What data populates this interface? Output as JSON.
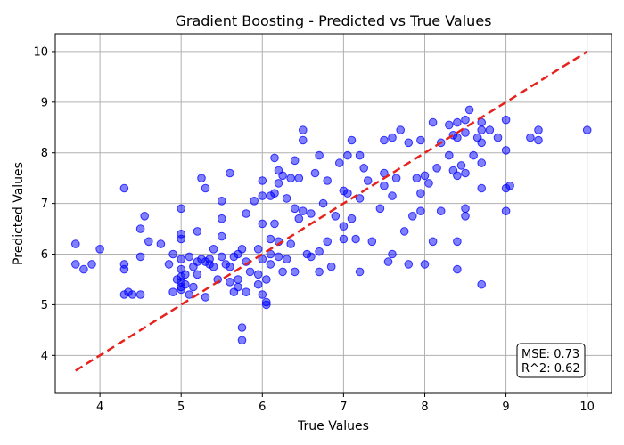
{
  "chart_data": {
    "type": "scatter",
    "title": "Gradient Boosting - Predicted vs True Values",
    "xlabel": "True Values",
    "ylabel": "Predicted Values",
    "xlim": [
      3.45,
      10.3
    ],
    "ylim": [
      3.25,
      10.35
    ],
    "xticks": [
      4,
      5,
      6,
      7,
      8,
      9,
      10
    ],
    "yticks": [
      4,
      5,
      6,
      7,
      8,
      9,
      10
    ],
    "grid": true,
    "colors": {
      "points": "#0000ff",
      "reference_line": "#e8211d",
      "grid": "#b0b0b0"
    },
    "reference_line": {
      "style": "dashed",
      "x": [
        3.7,
        10.0
      ],
      "y": [
        3.7,
        10.0
      ]
    },
    "annotation": {
      "lines": [
        "MSE: 0.73",
        "R^2: 0.62"
      ],
      "position": "bottom-right"
    },
    "series": [
      {
        "points": [
          [
            3.7,
            6.2
          ],
          [
            3.7,
            5.8
          ],
          [
            3.8,
            5.7
          ],
          [
            3.9,
            5.8
          ],
          [
            4.0,
            6.1
          ],
          [
            4.3,
            7.3
          ],
          [
            4.3,
            5.8
          ],
          [
            4.3,
            5.7
          ],
          [
            4.3,
            5.2
          ],
          [
            4.35,
            5.25
          ],
          [
            4.4,
            5.2
          ],
          [
            4.5,
            5.2
          ],
          [
            4.5,
            6.5
          ],
          [
            4.5,
            5.95
          ],
          [
            4.55,
            6.75
          ],
          [
            4.6,
            6.25
          ],
          [
            4.75,
            6.2
          ],
          [
            4.85,
            5.8
          ],
          [
            4.9,
            6.0
          ],
          [
            4.9,
            5.25
          ],
          [
            4.95,
            5.5
          ],
          [
            5.0,
            6.9
          ],
          [
            5.0,
            6.4
          ],
          [
            5.0,
            6.3
          ],
          [
            5.0,
            5.9
          ],
          [
            5.0,
            5.7
          ],
          [
            5.0,
            5.55
          ],
          [
            5.0,
            5.45
          ],
          [
            5.0,
            5.35
          ],
          [
            5.0,
            5.3
          ],
          [
            5.05,
            5.6
          ],
          [
            5.05,
            5.4
          ],
          [
            5.1,
            5.2
          ],
          [
            5.1,
            5.95
          ],
          [
            5.15,
            5.75
          ],
          [
            5.15,
            5.35
          ],
          [
            5.2,
            5.85
          ],
          [
            5.2,
            5.6
          ],
          [
            5.2,
            6.45
          ],
          [
            5.25,
            7.5
          ],
          [
            5.25,
            5.9
          ],
          [
            5.3,
            5.85
          ],
          [
            5.3,
            5.15
          ],
          [
            5.3,
            7.3
          ],
          [
            5.35,
            5.9
          ],
          [
            5.35,
            5.8
          ],
          [
            5.4,
            6.1
          ],
          [
            5.4,
            5.75
          ],
          [
            5.45,
            5.5
          ],
          [
            5.5,
            6.7
          ],
          [
            5.5,
            6.35
          ],
          [
            5.5,
            7.05
          ],
          [
            5.5,
            5.95
          ],
          [
            5.55,
            5.8
          ],
          [
            5.6,
            5.75
          ],
          [
            5.6,
            7.6
          ],
          [
            5.6,
            5.45
          ],
          [
            5.65,
            5.25
          ],
          [
            5.65,
            5.95
          ],
          [
            5.7,
            6.0
          ],
          [
            5.7,
            5.5
          ],
          [
            5.7,
            5.35
          ],
          [
            5.75,
            6.1
          ],
          [
            5.75,
            4.55
          ],
          [
            5.75,
            4.3
          ],
          [
            5.8,
            6.8
          ],
          [
            5.8,
            5.85
          ],
          [
            5.8,
            5.25
          ],
          [
            5.85,
            5.65
          ],
          [
            5.9,
            7.05
          ],
          [
            5.95,
            6.1
          ],
          [
            5.95,
            5.4
          ],
          [
            5.95,
            5.6
          ],
          [
            6.0,
            7.45
          ],
          [
            6.0,
            7.15
          ],
          [
            6.0,
            6.6
          ],
          [
            6.0,
            5.9
          ],
          [
            6.0,
            5.2
          ],
          [
            6.05,
            5.5
          ],
          [
            6.05,
            5.0
          ],
          [
            6.05,
            5.05
          ],
          [
            6.1,
            7.15
          ],
          [
            6.1,
            6.3
          ],
          [
            6.1,
            6.0
          ],
          [
            6.1,
            5.8
          ],
          [
            6.15,
            7.9
          ],
          [
            6.15,
            7.2
          ],
          [
            6.15,
            6.6
          ],
          [
            6.2,
            7.65
          ],
          [
            6.2,
            7.4
          ],
          [
            6.2,
            6.25
          ],
          [
            6.2,
            5.95
          ],
          [
            6.25,
            7.55
          ],
          [
            6.25,
            5.65
          ],
          [
            6.3,
            5.9
          ],
          [
            6.3,
            7.1
          ],
          [
            6.35,
            7.5
          ],
          [
            6.35,
            6.2
          ],
          [
            6.4,
            7.85
          ],
          [
            6.4,
            6.9
          ],
          [
            6.4,
            5.65
          ],
          [
            6.45,
            7.5
          ],
          [
            6.45,
            6.7
          ],
          [
            6.5,
            8.45
          ],
          [
            6.5,
            8.25
          ],
          [
            6.5,
            6.85
          ],
          [
            6.55,
            6.0
          ],
          [
            6.6,
            6.8
          ],
          [
            6.6,
            5.95
          ],
          [
            6.65,
            7.6
          ],
          [
            6.7,
            7.95
          ],
          [
            6.7,
            6.05
          ],
          [
            6.7,
            5.65
          ],
          [
            6.75,
            7.0
          ],
          [
            6.8,
            7.45
          ],
          [
            6.8,
            6.25
          ],
          [
            6.85,
            5.75
          ],
          [
            6.9,
            6.75
          ],
          [
            6.95,
            7.8
          ],
          [
            7.0,
            7.25
          ],
          [
            7.0,
            6.55
          ],
          [
            7.0,
            6.3
          ],
          [
            7.05,
            7.95
          ],
          [
            7.05,
            7.2
          ],
          [
            7.1,
            8.25
          ],
          [
            7.1,
            6.7
          ],
          [
            7.15,
            6.3
          ],
          [
            7.2,
            7.95
          ],
          [
            7.2,
            7.1
          ],
          [
            7.2,
            5.65
          ],
          [
            7.25,
            7.7
          ],
          [
            7.3,
            7.45
          ],
          [
            7.35,
            6.25
          ],
          [
            7.45,
            6.9
          ],
          [
            7.5,
            8.25
          ],
          [
            7.5,
            7.6
          ],
          [
            7.5,
            7.35
          ],
          [
            7.55,
            5.85
          ],
          [
            7.6,
            8.3
          ],
          [
            7.6,
            7.15
          ],
          [
            7.6,
            6.0
          ],
          [
            7.65,
            7.5
          ],
          [
            7.7,
            8.45
          ],
          [
            7.75,
            6.45
          ],
          [
            7.8,
            8.2
          ],
          [
            7.8,
            5.8
          ],
          [
            7.85,
            6.75
          ],
          [
            7.9,
            7.5
          ],
          [
            7.95,
            8.25
          ],
          [
            7.95,
            7.2
          ],
          [
            7.95,
            6.85
          ],
          [
            8.0,
            5.8
          ],
          [
            8.0,
            7.55
          ],
          [
            8.05,
            7.4
          ],
          [
            8.1,
            8.6
          ],
          [
            8.1,
            6.25
          ],
          [
            8.15,
            7.7
          ],
          [
            8.2,
            8.2
          ],
          [
            8.2,
            6.85
          ],
          [
            8.3,
            8.55
          ],
          [
            8.3,
            7.95
          ],
          [
            8.35,
            8.35
          ],
          [
            8.35,
            7.65
          ],
          [
            8.4,
            8.6
          ],
          [
            8.4,
            8.3
          ],
          [
            8.4,
            7.55
          ],
          [
            8.4,
            5.7
          ],
          [
            8.4,
            6.25
          ],
          [
            8.45,
            7.75
          ],
          [
            8.5,
            8.65
          ],
          [
            8.5,
            8.4
          ],
          [
            8.5,
            7.6
          ],
          [
            8.5,
            6.9
          ],
          [
            8.5,
            6.75
          ],
          [
            8.55,
            8.85
          ],
          [
            8.6,
            7.95
          ],
          [
            8.65,
            8.3
          ],
          [
            8.7,
            8.6
          ],
          [
            8.7,
            8.45
          ],
          [
            8.7,
            8.2
          ],
          [
            8.7,
            7.8
          ],
          [
            8.7,
            7.3
          ],
          [
            8.7,
            5.4
          ],
          [
            8.8,
            8.45
          ],
          [
            8.9,
            8.3
          ],
          [
            9.0,
            8.65
          ],
          [
            9.0,
            8.05
          ],
          [
            9.0,
            7.3
          ],
          [
            9.0,
            6.85
          ],
          [
            9.05,
            7.35
          ],
          [
            9.3,
            8.3
          ],
          [
            9.4,
            8.45
          ],
          [
            9.4,
            8.25
          ],
          [
            10.0,
            8.45
          ]
        ]
      }
    ]
  }
}
